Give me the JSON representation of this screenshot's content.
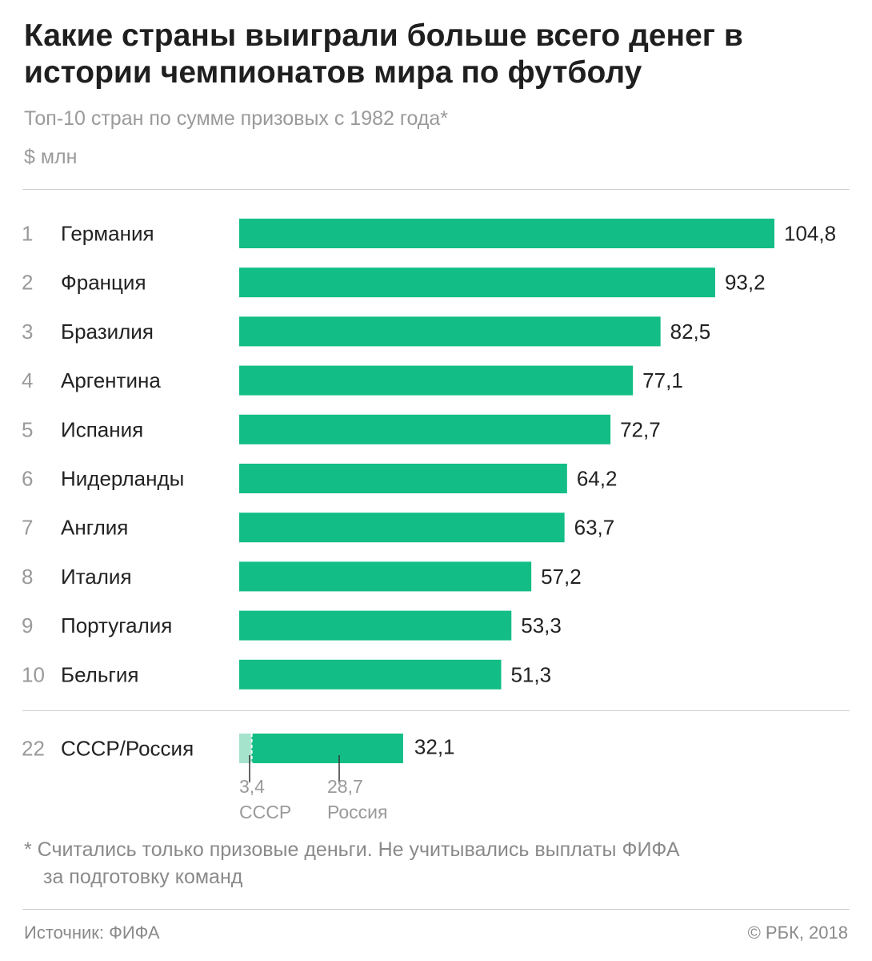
{
  "title": "Какие страны выиграли больше всего денег в истории чемпионатов мира по футболу",
  "subtitle": "Топ-10 стран по сумме призовых с 1982 года*",
  "unit": "$ млн",
  "note_line1": "* Считались только призовые деньги. Не учитывались выплаты ФИФА",
  "note_line2": "за подготовку команд",
  "source": "Источник: ФИФА",
  "copyright": "© РБК, 2018",
  "colors": {
    "bar": "#12bd86",
    "bar_light": "#a6e3cc",
    "rank": "#9a9a9a",
    "label": "#222222",
    "annotation": "#9a9a9a"
  },
  "chart_data": {
    "type": "bar",
    "orientation": "horizontal",
    "ranks": [
      "1",
      "2",
      "3",
      "4",
      "5",
      "6",
      "7",
      "8",
      "9",
      "10"
    ],
    "categories": [
      "Германия",
      "Франция",
      "Бразилия",
      "Аргентина",
      "Испания",
      "Нидерланды",
      "Англия",
      "Италия",
      "Португалия",
      "Бельгия"
    ],
    "values": [
      104.8,
      93.2,
      82.5,
      77.1,
      72.7,
      64.2,
      63.7,
      57.2,
      53.3,
      51.3
    ],
    "value_labels": [
      "104,8",
      "93,2",
      "82,5",
      "77,1",
      "72,7",
      "64,2",
      "63,7",
      "57,2",
      "53,3",
      "51,3"
    ],
    "xlim": [
      0,
      104.8
    ],
    "extra": {
      "rank": "22",
      "category": "СССР/Россия",
      "value_label": "32,1",
      "segments": [
        {
          "name": "СССР",
          "value": 3.4,
          "value_label": "3,4"
        },
        {
          "name": "Россия",
          "value": 28.7,
          "value_label": "28,7"
        }
      ]
    }
  }
}
